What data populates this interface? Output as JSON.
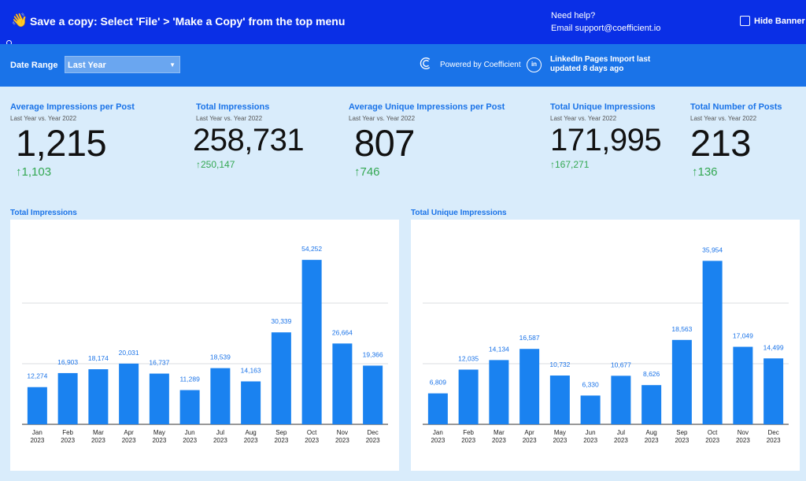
{
  "banner": {
    "message": "Save a copy: Select 'File' > 'Make a Copy' from the top menu",
    "help_title": "Need help?",
    "help_email": "Email support@coefficient.io",
    "hide_label": "Hide Banner"
  },
  "toolbar": {
    "date_range_label": "Date Range",
    "date_range_value": "Last Year",
    "powered_by": "Powered by Coefficient",
    "linkedin_badge": "in",
    "import_line1": "LinkedIn Pages Import last",
    "import_line2": "updated 8 days ago"
  },
  "kpis": [
    {
      "title": "Average Impressions per Post",
      "subtitle": "Last Year vs. Year 2022",
      "value": "1,215",
      "delta": "1,103"
    },
    {
      "title": "Total Impressions",
      "subtitle": "Last Year vs. Year 2022",
      "value": "258,731",
      "delta": "250,147"
    },
    {
      "title": "Average Unique Impressions per Post",
      "subtitle": "Last Year vs. Year 2022",
      "value": "807",
      "delta": "746"
    },
    {
      "title": "Total Unique Impressions",
      "subtitle": "Last Year vs. Year 2022",
      "value": "171,995",
      "delta": "167,271"
    },
    {
      "title": "Total Number of Posts",
      "subtitle": "Last Year vs. Year 2022",
      "value": "213",
      "delta": "136"
    }
  ],
  "colors": {
    "accent": "#1a73e8",
    "bar": "#1a82f0",
    "positive": "#34a853",
    "banner": "#0a2fe6"
  },
  "chart_data": [
    {
      "type": "bar",
      "title": "Total Impressions",
      "categories": [
        "Jan 2023",
        "Feb 2023",
        "Mar 2023",
        "Apr 2023",
        "May 2023",
        "Jun 2023",
        "Jul 2023",
        "Aug 2023",
        "Sep 2023",
        "Oct 2023",
        "Nov 2023",
        "Dec 2023"
      ],
      "values": [
        12274,
        16903,
        18174,
        20031,
        16737,
        11289,
        18539,
        14163,
        30339,
        54252,
        26664,
        19366
      ],
      "labels": [
        "12,274",
        "16,903",
        "18,174",
        "20,031",
        "16,737",
        "11,289",
        "18,539",
        "14,163",
        "30,339",
        "54,252",
        "26,664",
        "19,366"
      ],
      "ylim": [
        0,
        60000
      ],
      "grid": true
    },
    {
      "type": "bar",
      "title": "Total Unique Impressions",
      "categories": [
        "Jan 2023",
        "Feb 2023",
        "Mar 2023",
        "Apr 2023",
        "May 2023",
        "Jun 2023",
        "Jul 2023",
        "Aug 2023",
        "Sep 2023",
        "Oct 2023",
        "Nov 2023",
        "Dec 2023"
      ],
      "values": [
        6809,
        12035,
        14134,
        16587,
        10732,
        6330,
        10677,
        8626,
        18563,
        35954,
        17049,
        14499
      ],
      "labels": [
        "6,809",
        "12,035",
        "14,134",
        "16,587",
        "10,732",
        "6,330",
        "10,677",
        "8,626",
        "18,563",
        "35,954",
        "17,049",
        "14,499"
      ],
      "ylim": [
        0,
        40000
      ],
      "grid": true
    }
  ]
}
